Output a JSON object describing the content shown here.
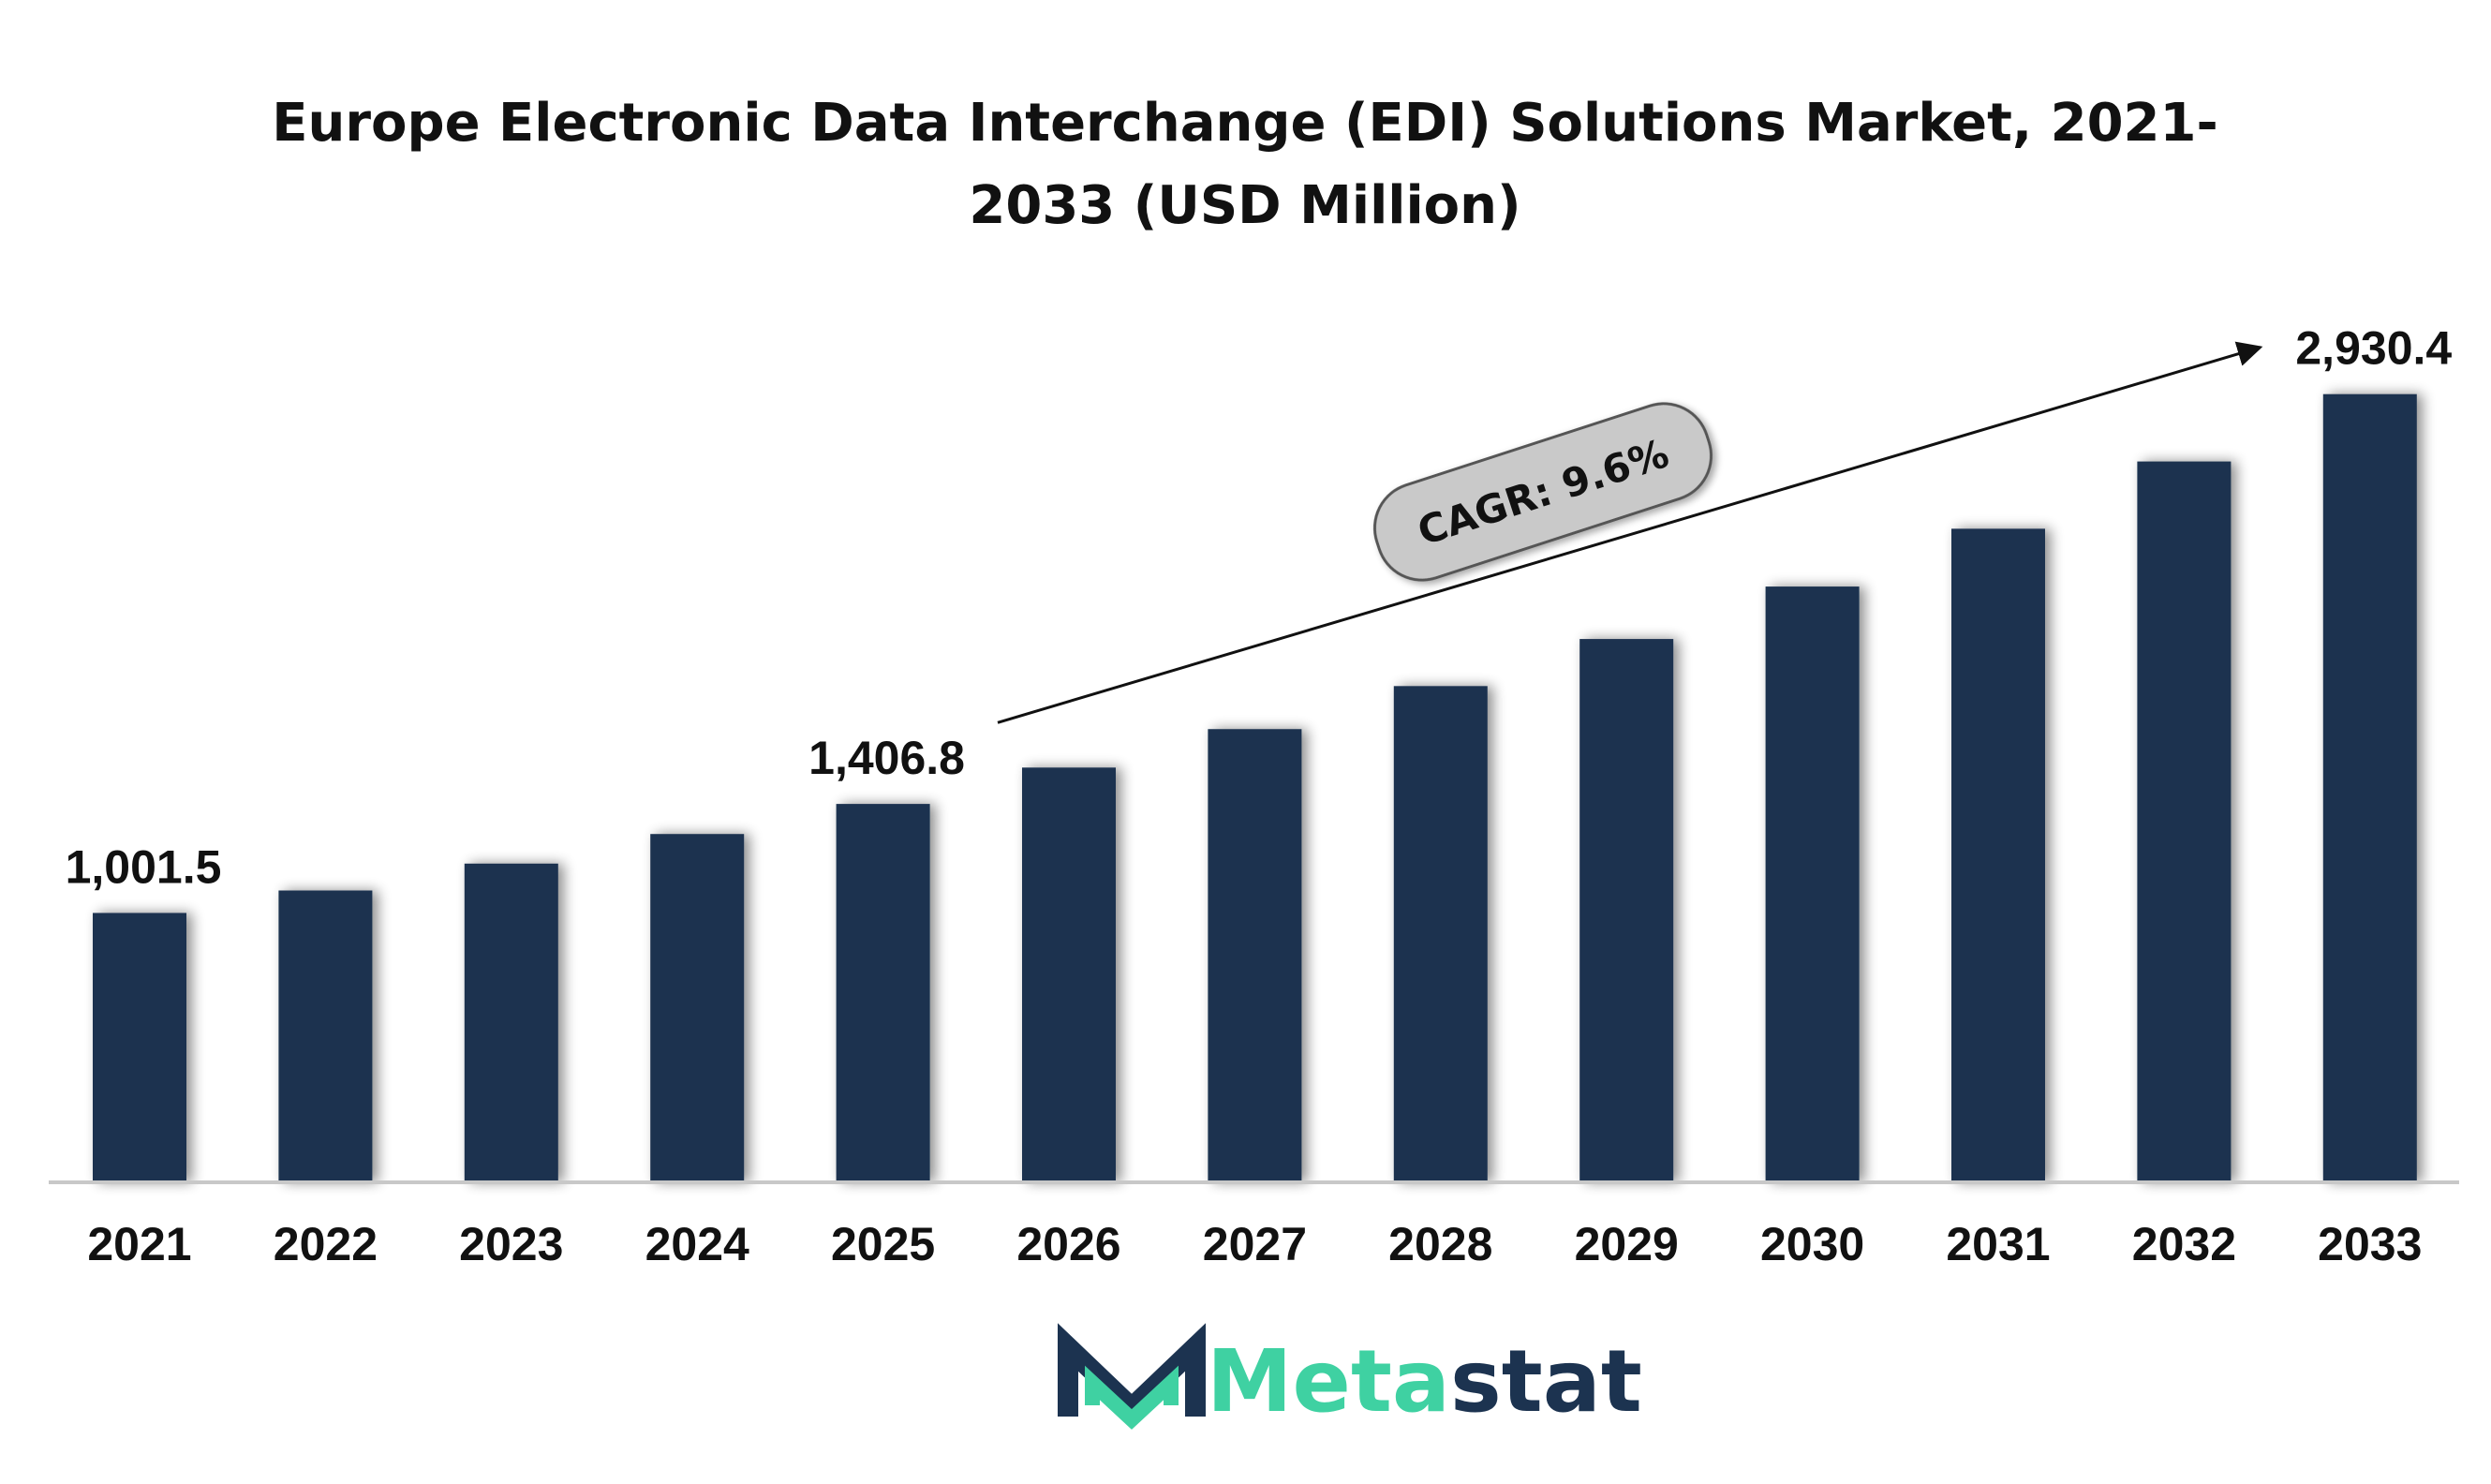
{
  "chart_data": {
    "type": "bar",
    "title_lines": [
      "Europe Electronic Data Interchange (EDI) Solutions Market, 2021-",
      "2033 (USD Million)"
    ],
    "categories": [
      "2021",
      "2022",
      "2023",
      "2024",
      "2025",
      "2026",
      "2027",
      "2028",
      "2029",
      "2030",
      "2031",
      "2032",
      "2033"
    ],
    "values": [
      1001.5,
      1085,
      1185,
      1295,
      1406.8,
      1542,
      1685,
      1845,
      2020,
      2215,
      2430,
      2680,
      2930.4
    ],
    "data_labels": [
      {
        "index": 0,
        "text": "1,001.5"
      },
      {
        "index": 4,
        "text": "1,406.8"
      },
      {
        "index": 12,
        "text": "2,930.4"
      }
    ],
    "annotation": {
      "text": "CAGR: 9.6%",
      "from_index": 5,
      "to_index": 12
    },
    "ylim": [
      0,
      3100
    ],
    "xlabel": "",
    "ylabel": "",
    "grid": false,
    "legend": "none",
    "bar_color": "#1c3350",
    "axis_color": "#c8c8c8"
  },
  "logo": {
    "prefix": "Meta",
    "suffix": "stat",
    "prefix_color": "#3fd1a2",
    "suffix_color": "#1c3350",
    "mark_icon": "metastat-m-logo-icon"
  }
}
